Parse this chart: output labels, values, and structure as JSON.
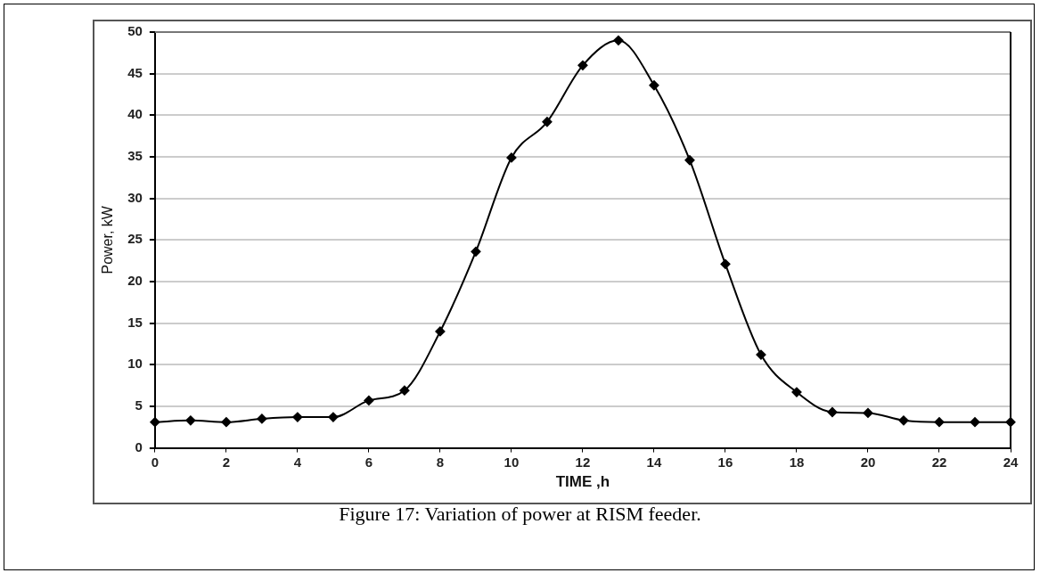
{
  "chart_data": {
    "type": "line",
    "xlabel": "TIME ,h",
    "ylabel": "Power, kW",
    "annotations": [
      "Figure 17: Variation of power at RISM feeder."
    ],
    "x": [
      0,
      1,
      2,
      3,
      4,
      5,
      6,
      7,
      8,
      9,
      10,
      11,
      12,
      13,
      14,
      15,
      16,
      17,
      18,
      19,
      20,
      21,
      22,
      23,
      24
    ],
    "series": [
      {
        "color": "#000000",
        "values": [
          3.1,
          3.3,
          3.1,
          3.5,
          3.7,
          3.7,
          5.7,
          6.9,
          14,
          23.6,
          34.9,
          39.2,
          46,
          49,
          43.6,
          34.6,
          22.1,
          11.2,
          6.7,
          4.3,
          4.2,
          3.3,
          3.1,
          3.1,
          3.1
        ]
      }
    ],
    "xlim": [
      0,
      24
    ],
    "xticks": [
      0,
      2,
      4,
      6,
      8,
      10,
      12,
      14,
      16,
      18,
      20,
      22,
      24
    ],
    "ylim": [
      0,
      50
    ],
    "yticks": [
      0,
      5,
      10,
      15,
      20,
      25,
      30,
      35,
      40,
      45,
      50
    ],
    "grid": "y",
    "legend": false,
    "marker": "diamond",
    "line_style": "solid"
  }
}
